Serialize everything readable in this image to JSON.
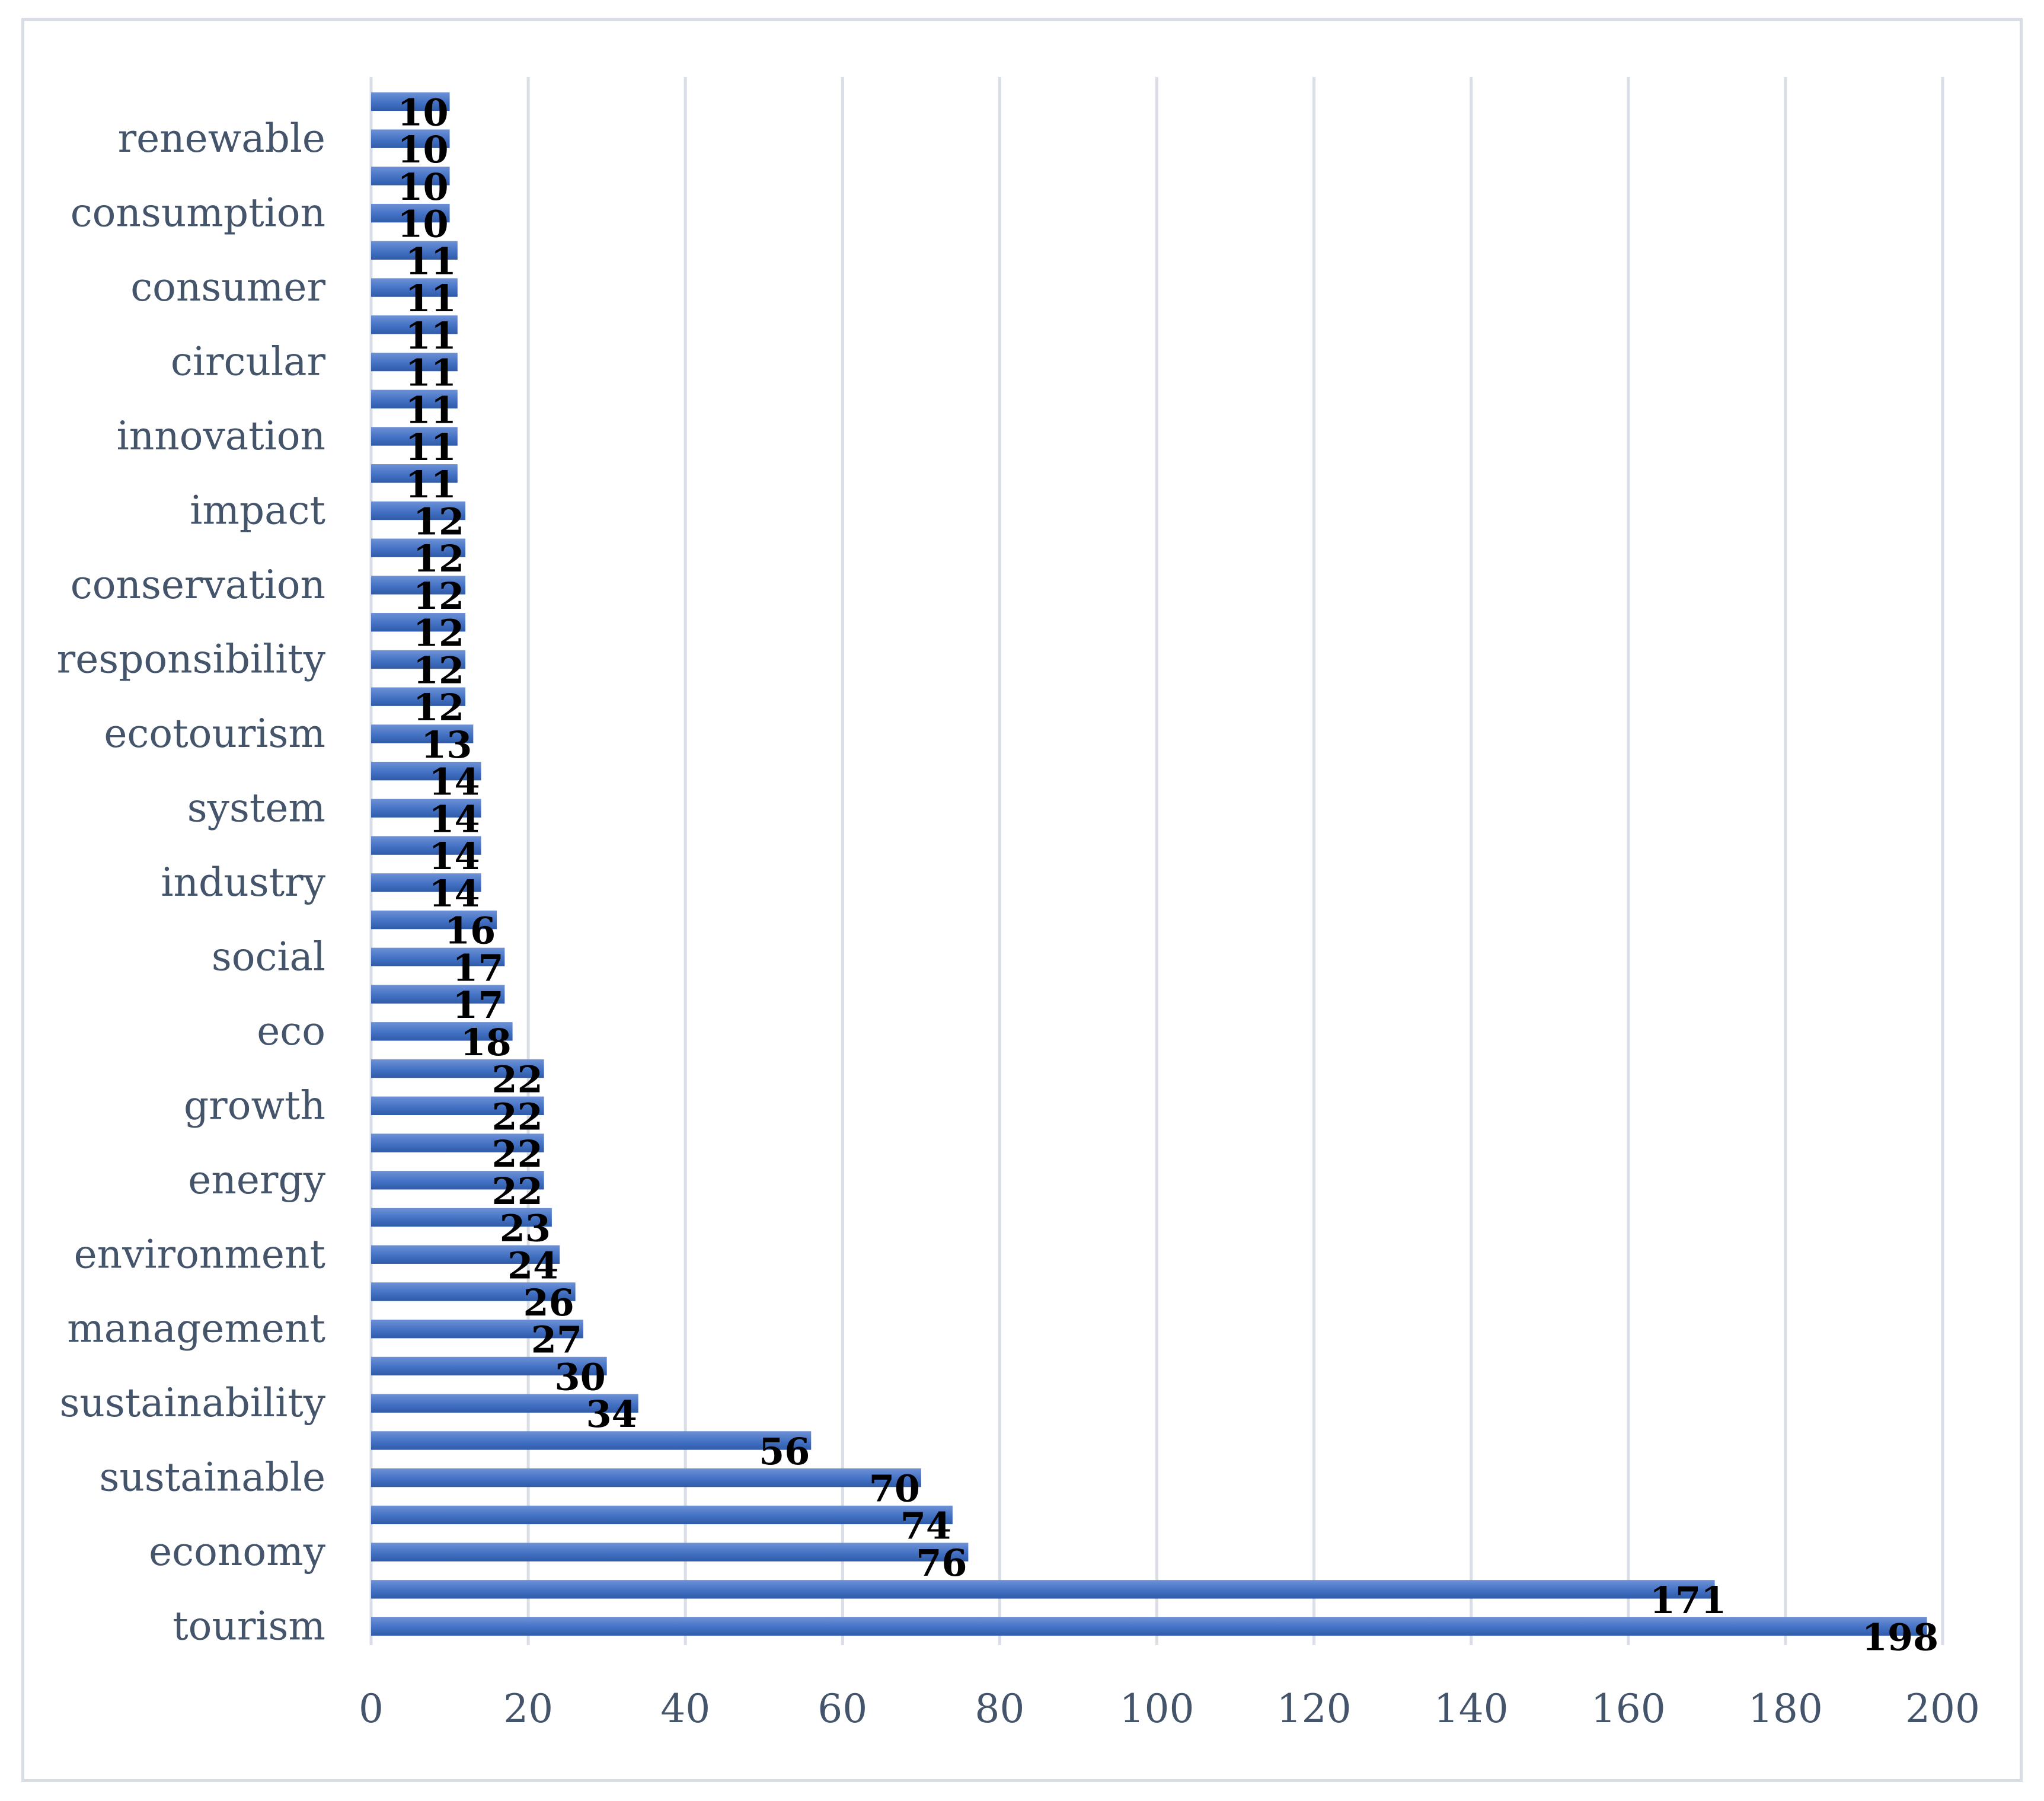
{
  "chart_data": {
    "type": "bar",
    "orientation": "horizontal",
    "title": "",
    "xlabel": "",
    "ylabel": "",
    "xlim": [
      0,
      200
    ],
    "x_ticks": [
      0,
      20,
      40,
      60,
      80,
      100,
      120,
      140,
      160,
      180,
      200
    ],
    "grid": true,
    "legend": "none",
    "bar_color": "#4472c4",
    "categories": [
      "tourism",
      "",
      "economy",
      "",
      "sustainable",
      "",
      "sustainability",
      "",
      "management",
      "",
      "environment",
      "",
      "energy",
      "",
      "growth",
      "",
      "eco",
      "",
      "social",
      "",
      "industry",
      "",
      "system",
      "",
      "ecotourism",
      "",
      "responsibility",
      "",
      "conservation",
      "",
      "impact",
      "",
      "innovation",
      "",
      "circular",
      "",
      "consumer",
      "",
      "consumption",
      "",
      "renewable",
      ""
    ],
    "values": [
      198,
      171,
      76,
      74,
      70,
      56,
      34,
      30,
      27,
      26,
      24,
      23,
      22,
      22,
      22,
      22,
      18,
      17,
      17,
      16,
      14,
      14,
      14,
      14,
      13,
      12,
      12,
      12,
      12,
      12,
      12,
      11,
      11,
      11,
      11,
      11,
      11,
      11,
      10,
      10,
      10,
      10
    ],
    "data_labels": [
      "198",
      "171",
      "76",
      "74",
      "70",
      "56",
      "34",
      "30",
      "27",
      "26",
      "24",
      "23",
      "22",
      "22",
      "22",
      "22",
      "18",
      "17",
      "17",
      "16",
      "14",
      "14",
      "14",
      "14",
      "13",
      "12",
      "12",
      "12",
      "12",
      "12",
      "12",
      "11",
      "11",
      "11",
      "11",
      "11",
      "11",
      "11",
      "10",
      "10",
      "10",
      "10"
    ]
  }
}
